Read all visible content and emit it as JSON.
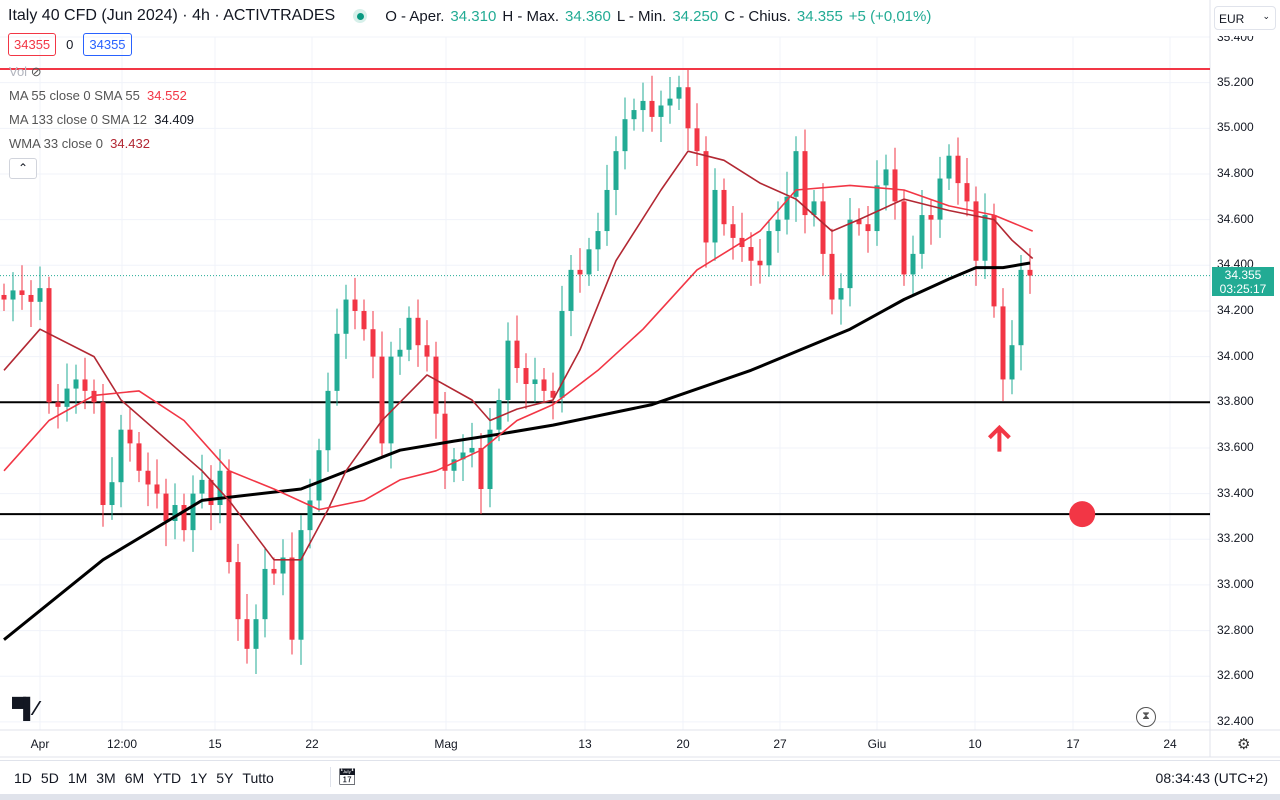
{
  "header": {
    "symbol": "Italy 40 CFD (Jun 2024) · 4h · ACTIVTRADES",
    "o_label": "O - Aper.",
    "o": "34.310",
    "h_label": "H - Max.",
    "h": "34.360",
    "l_label": "L - Min.",
    "l": "34.250",
    "c_label": "C - Chius.",
    "c": "34.355",
    "change": "+5 (+0,01%)"
  },
  "order": {
    "sell": "34355",
    "spread": "0",
    "buy": "34355"
  },
  "volume_label": "Vol",
  "indicators": [
    {
      "label": "MA 55 close 0 SMA 55",
      "value": "34.552",
      "color": "#f23645"
    },
    {
      "label": "MA 133 close 0 SMA 12",
      "value": "34.409",
      "color": "#000000"
    },
    {
      "label": "WMA 33 close 0",
      "value": "34.432",
      "color": "#b22833"
    }
  ],
  "currency": "EUR",
  "price_tag": {
    "price": "34.355",
    "countdown": "03:25:17"
  },
  "range_buttons": [
    "1D",
    "5D",
    "1M",
    "3M",
    "6M",
    "YTD",
    "1Y",
    "5Y",
    "Tutto"
  ],
  "clock": "08:34:43 (UTC+2)",
  "colors": {
    "up": "#22ab94",
    "down": "#f23645"
  },
  "chart_data": {
    "type": "candlestick",
    "title": "Italy 40 CFD (Jun 2024) 4h",
    "ylim": [
      32.4,
      35.4
    ],
    "y_ticks": [
      "35.400",
      "35.200",
      "35.000",
      "34.800",
      "34.600",
      "34.400",
      "34.200",
      "34.000",
      "33.800",
      "33.600",
      "33.400",
      "33.200",
      "33.000",
      "32.800",
      "32.600",
      "32.400"
    ],
    "x_ticks": [
      "Apr",
      "12:00",
      "15",
      "22",
      "Mag",
      "13",
      "20",
      "27",
      "Giu",
      "10",
      "17",
      "24"
    ],
    "closes": [
      34.25,
      34.29,
      34.27,
      34.24,
      34.3,
      33.8,
      33.78,
      33.86,
      33.9,
      33.85,
      33.8,
      33.35,
      33.45,
      33.68,
      33.62,
      33.5,
      33.44,
      33.4,
      33.28,
      33.35,
      33.24,
      33.4,
      33.46,
      33.35,
      33.5,
      33.1,
      32.85,
      32.72,
      32.85,
      33.07,
      33.05,
      33.12,
      32.76,
      33.24,
      33.37,
      33.59,
      33.85,
      34.1,
      34.25,
      34.2,
      34.12,
      34.0,
      33.62,
      34.0,
      34.03,
      34.17,
      34.05,
      34.0,
      33.75,
      33.5,
      33.55,
      33.58,
      33.6,
      33.42,
      33.68,
      33.81,
      34.07,
      33.95,
      33.88,
      33.9,
      33.85,
      33.82,
      34.2,
      34.38,
      34.36,
      34.47,
      34.55,
      34.73,
      34.9,
      35.04,
      35.08,
      35.12,
      35.05,
      35.1,
      35.13,
      35.18,
      35.0,
      34.9,
      34.5,
      34.73,
      34.58,
      34.52,
      34.48,
      34.42,
      34.4,
      34.55,
      34.6,
      34.7,
      34.9,
      34.62,
      34.68,
      34.45,
      34.25,
      34.3,
      34.6,
      34.58,
      34.55,
      34.75,
      34.82,
      34.68,
      34.36,
      34.45,
      34.62,
      34.6,
      34.78,
      34.88,
      34.76,
      34.68,
      34.42,
      34.62,
      34.22,
      33.9,
      34.05,
      34.38,
      34.355
    ],
    "series": [
      {
        "name": "MA 133 close 0 SMA 12",
        "color": "#000000",
        "points": [
          [
            0,
            32.76
          ],
          [
            11,
            33.11
          ],
          [
            22,
            33.37
          ],
          [
            33,
            33.42
          ],
          [
            44,
            33.59
          ],
          [
            50,
            33.63
          ],
          [
            55,
            33.66
          ],
          [
            61,
            33.7
          ],
          [
            72,
            33.79
          ],
          [
            83,
            33.94
          ],
          [
            94,
            34.12
          ],
          [
            100,
            34.25
          ],
          [
            105,
            34.34
          ],
          [
            108,
            34.39
          ],
          [
            111,
            34.39
          ],
          [
            114,
            34.41
          ]
        ]
      },
      {
        "name": "WMA 33 close 0",
        "color": "#b22833",
        "points": [
          [
            0,
            33.94
          ],
          [
            4,
            34.12
          ],
          [
            10,
            34.0
          ],
          [
            13,
            33.81
          ],
          [
            22,
            33.5
          ],
          [
            25,
            33.37
          ],
          [
            30,
            33.11
          ],
          [
            33,
            33.11
          ],
          [
            36,
            33.33
          ],
          [
            38,
            33.5
          ],
          [
            42,
            33.72
          ],
          [
            47,
            33.92
          ],
          [
            52,
            33.81
          ],
          [
            54,
            33.72
          ],
          [
            57,
            33.77
          ],
          [
            61,
            33.81
          ],
          [
            64,
            34.03
          ],
          [
            68,
            34.42
          ],
          [
            73,
            34.73
          ],
          [
            76,
            34.9
          ],
          [
            80,
            34.86
          ],
          [
            84,
            34.76
          ],
          [
            88,
            34.69
          ],
          [
            92,
            34.55
          ],
          [
            95,
            34.6
          ],
          [
            100,
            34.69
          ],
          [
            105,
            34.64
          ],
          [
            110,
            34.6
          ],
          [
            112,
            34.51
          ],
          [
            114.3,
            34.43
          ]
        ]
      },
      {
        "name": "MA 55 close 0 SMA 55",
        "color": "#f23645",
        "points": [
          [
            0,
            33.5
          ],
          [
            5,
            33.72
          ],
          [
            10,
            33.83
          ],
          [
            15,
            33.85
          ],
          [
            20,
            33.72
          ],
          [
            25,
            33.5
          ],
          [
            30,
            33.42
          ],
          [
            35,
            33.33
          ],
          [
            40,
            33.37
          ],
          [
            44,
            33.46
          ],
          [
            48,
            33.5
          ],
          [
            53,
            33.59
          ],
          [
            57,
            33.72
          ],
          [
            61,
            33.79
          ],
          [
            66,
            33.94
          ],
          [
            71,
            34.12
          ],
          [
            77,
            34.38
          ],
          [
            84,
            34.55
          ],
          [
            88,
            34.73
          ],
          [
            94,
            34.75
          ],
          [
            100,
            34.73
          ],
          [
            105,
            34.66
          ],
          [
            110,
            34.62
          ],
          [
            114.3,
            34.55
          ]
        ]
      }
    ],
    "horizontal_lines": [
      {
        "price": 35.26,
        "color": "#f23645"
      },
      {
        "price": 33.8,
        "color": "#000000"
      },
      {
        "price": 33.31,
        "color": "#000000"
      }
    ],
    "current_price": 34.355,
    "markers": [
      {
        "type": "arrow-up",
        "index": 110.6,
        "price": 33.68,
        "color": "#f23645"
      },
      {
        "type": "dot",
        "index": 119.8,
        "price": 33.31,
        "color": "#f23645"
      }
    ]
  }
}
